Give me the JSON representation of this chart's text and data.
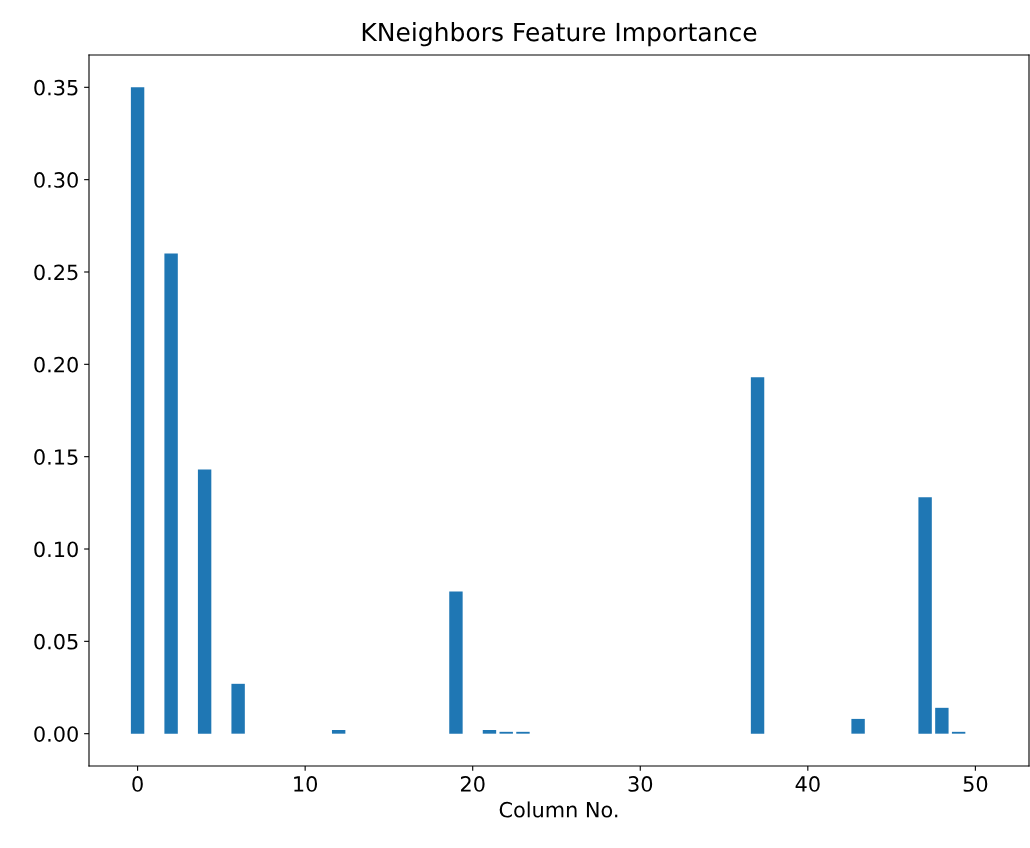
{
  "chart_data": {
    "type": "bar",
    "title": "KNeighbors Feature Importance",
    "xlabel": "Column No.",
    "x": [
      0,
      2,
      4,
      6,
      12,
      19,
      21,
      22,
      23,
      37,
      43,
      47,
      48,
      49
    ],
    "values": [
      0.35,
      0.26,
      0.143,
      0.027,
      0.002,
      0.077,
      0.002,
      0.001,
      0.001,
      0.193,
      0.008,
      0.128,
      0.014,
      0.001
    ],
    "color": "#1f77b4",
    "xlim": [
      -2.9,
      53.2
    ],
    "xticks": [
      0,
      10,
      20,
      30,
      40,
      50
    ],
    "ylim": [
      -0.0175,
      0.3675
    ],
    "yticks": [
      {
        "value": 0,
        "label": "0.00"
      },
      {
        "value": 0.05,
        "label": "0.05"
      },
      {
        "value": 0.1,
        "label": "0.10"
      },
      {
        "value": 0.15,
        "label": "0.15"
      },
      {
        "value": 0.2,
        "label": "0.20"
      },
      {
        "value": 0.25,
        "label": "0.25"
      },
      {
        "value": 0.3,
        "label": "0.30"
      },
      {
        "value": 0.35,
        "label": "0.35"
      }
    ],
    "grid": false
  }
}
